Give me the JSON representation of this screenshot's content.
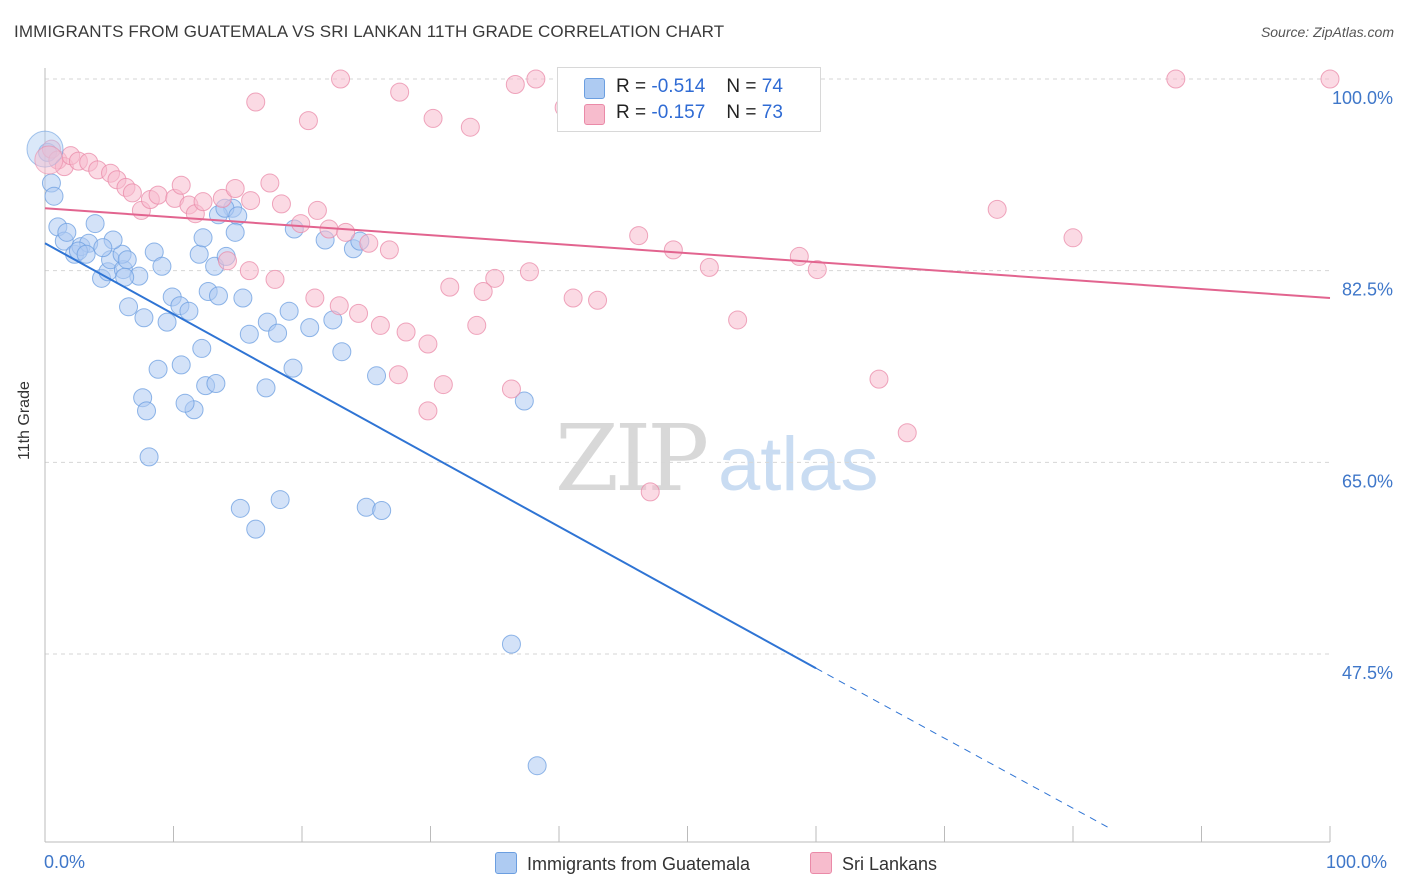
{
  "header": {
    "title": "IMMIGRANTS FROM GUATEMALA VS SRI LANKAN 11TH GRADE CORRELATION CHART",
    "source": "Source: ZipAtlas.com"
  },
  "legend": {
    "rows": [
      {
        "r_label": "R =",
        "r_value": "-0.514",
        "n_label": "N =",
        "n_value": "74",
        "color": "#aecbf2"
      },
      {
        "r_label": "R =",
        "r_value": "-0.157",
        "n_label": "N =",
        "n_value": "73",
        "color": "#f7bccd"
      }
    ],
    "bottom": [
      {
        "label": "Immigrants from Guatemala",
        "color": "#aecbf2"
      },
      {
        "label": "Sri Lankans",
        "color": "#f7bccd"
      }
    ]
  },
  "colors": {
    "blue_point": "#aecbf2",
    "blue_stroke": "#6b9ee0",
    "blue_line": "#2f74d4",
    "pink_point": "#f7bccd",
    "pink_stroke": "#ea8aa8",
    "pink_line": "#e2648f",
    "axis_label": "#3f77c9"
  },
  "chart_data": {
    "type": "scatter",
    "title": "IMMIGRANTS FROM GUATEMALA VS SRI LANKAN 11TH GRADE CORRELATION CHART",
    "xlabel": "",
    "ylabel": "11th Grade",
    "xlim": [
      0,
      100
    ],
    "ylim": [
      31.5,
      102
    ],
    "x_tick_labels": [
      "0.0%",
      "100.0%"
    ],
    "y_ticks": [
      47.5,
      65.0,
      82.5,
      100.0
    ],
    "y_tick_labels": [
      "47.5%",
      "65.0%",
      "82.5%",
      "100.0%"
    ],
    "grid": "horizontal dashed",
    "watermark": "ZIPatlas",
    "series": [
      {
        "name": "Immigrants from Guatemala",
        "r": -0.514,
        "n": 74,
        "trend": {
          "x0": 0,
          "y0": 85.0,
          "x1": 60,
          "y1": 46.2,
          "dashed_to_x": 83,
          "dashed_to_y": 31.5
        },
        "points": [
          [
            0.2,
            93.3
          ],
          [
            0.5,
            90.5
          ],
          [
            0.7,
            89.3
          ],
          [
            1.0,
            86.5
          ],
          [
            1.5,
            85.2
          ],
          [
            1.7,
            86.0
          ],
          [
            2.3,
            84.0
          ],
          [
            2.8,
            84.7
          ],
          [
            3.4,
            85.0
          ],
          [
            3.9,
            86.8
          ],
          [
            2.6,
            84.3
          ],
          [
            3.2,
            84.0
          ],
          [
            4.4,
            81.8
          ],
          [
            4.9,
            82.4
          ],
          [
            5.1,
            83.5
          ],
          [
            6.1,
            82.6
          ],
          [
            6.0,
            84.0
          ],
          [
            6.4,
            83.5
          ],
          [
            7.3,
            82.0
          ],
          [
            7.7,
            78.2
          ],
          [
            6.5,
            79.2
          ],
          [
            8.5,
            84.2
          ],
          [
            9.1,
            82.9
          ],
          [
            9.9,
            80.1
          ],
          [
            9.5,
            77.8
          ],
          [
            10.5,
            79.3
          ],
          [
            11.2,
            78.8
          ],
          [
            12.0,
            84.0
          ],
          [
            12.3,
            85.5
          ],
          [
            13.2,
            82.9
          ],
          [
            12.7,
            80.6
          ],
          [
            14.1,
            83.8
          ],
          [
            14.6,
            88.2
          ],
          [
            13.5,
            87.6
          ],
          [
            14.0,
            88.2
          ],
          [
            15.0,
            87.5
          ],
          [
            14.8,
            86.0
          ],
          [
            5.3,
            85.3
          ],
          [
            4.5,
            84.6
          ],
          [
            6.2,
            81.9
          ],
          [
            19.4,
            86.3
          ],
          [
            21.8,
            85.3
          ],
          [
            24.0,
            84.5
          ],
          [
            24.5,
            85.2
          ],
          [
            19.0,
            78.8
          ],
          [
            17.3,
            77.8
          ],
          [
            15.4,
            80.0
          ],
          [
            13.5,
            80.2
          ],
          [
            12.2,
            75.4
          ],
          [
            10.6,
            73.9
          ],
          [
            8.8,
            73.5
          ],
          [
            12.5,
            72.0
          ],
          [
            11.6,
            69.8
          ],
          [
            7.6,
            70.9
          ],
          [
            8.1,
            65.5
          ],
          [
            18.1,
            76.8
          ],
          [
            19.3,
            73.6
          ],
          [
            20.6,
            77.3
          ],
          [
            22.4,
            78.0
          ],
          [
            23.1,
            75.1
          ],
          [
            13.3,
            72.2
          ],
          [
            10.9,
            70.4
          ],
          [
            15.9,
            76.7
          ],
          [
            25.8,
            72.9
          ],
          [
            7.9,
            69.7
          ],
          [
            17.2,
            71.8
          ],
          [
            15.2,
            60.8
          ],
          [
            18.3,
            61.6
          ],
          [
            25.0,
            60.9
          ],
          [
            16.4,
            58.9
          ],
          [
            26.2,
            60.6
          ],
          [
            37.3,
            70.6
          ],
          [
            36.3,
            48.4
          ],
          [
            38.3,
            37.3
          ]
        ]
      },
      {
        "name": "Sri Lankans",
        "r": -0.157,
        "n": 73,
        "trend": {
          "x0": 0,
          "y0": 88.2,
          "x1": 100,
          "y1": 80.0
        },
        "points": [
          [
            0.5,
            93.6
          ],
          [
            1.0,
            92.6
          ],
          [
            1.5,
            92.0
          ],
          [
            2.0,
            93.0
          ],
          [
            2.6,
            92.5
          ],
          [
            3.4,
            92.4
          ],
          [
            4.1,
            91.7
          ],
          [
            5.1,
            91.4
          ],
          [
            5.6,
            90.8
          ],
          [
            6.3,
            90.1
          ],
          [
            6.8,
            89.6
          ],
          [
            7.5,
            88.0
          ],
          [
            8.2,
            89.0
          ],
          [
            8.8,
            89.4
          ],
          [
            10.1,
            89.1
          ],
          [
            10.6,
            90.3
          ],
          [
            11.2,
            88.5
          ],
          [
            11.7,
            87.7
          ],
          [
            12.3,
            88.8
          ],
          [
            13.8,
            89.1
          ],
          [
            14.8,
            90.0
          ],
          [
            16.0,
            88.9
          ],
          [
            17.5,
            90.5
          ],
          [
            18.4,
            88.6
          ],
          [
            19.9,
            86.8
          ],
          [
            21.2,
            88.0
          ],
          [
            22.1,
            86.3
          ],
          [
            23.4,
            86.0
          ],
          [
            25.2,
            85.0
          ],
          [
            26.8,
            84.4
          ],
          [
            14.2,
            83.4
          ],
          [
            15.9,
            82.5
          ],
          [
            17.9,
            81.7
          ],
          [
            21.0,
            80.0
          ],
          [
            22.9,
            79.3
          ],
          [
            24.4,
            78.6
          ],
          [
            26.1,
            77.5
          ],
          [
            28.1,
            76.9
          ],
          [
            29.8,
            75.8
          ],
          [
            31.0,
            72.1
          ],
          [
            16.4,
            97.9
          ],
          [
            20.5,
            96.2
          ],
          [
            23.0,
            100.0
          ],
          [
            27.6,
            98.8
          ],
          [
            30.2,
            96.4
          ],
          [
            33.1,
            95.6
          ],
          [
            36.6,
            99.5
          ],
          [
            38.2,
            100.0
          ],
          [
            40.4,
            97.4
          ],
          [
            42.3,
            96.5
          ],
          [
            46.2,
            85.7
          ],
          [
            48.9,
            84.4
          ],
          [
            51.7,
            82.8
          ],
          [
            53.9,
            78.0
          ],
          [
            58.7,
            83.8
          ],
          [
            60.1,
            82.6
          ],
          [
            64.9,
            72.6
          ],
          [
            67.1,
            67.7
          ],
          [
            74.1,
            88.1
          ],
          [
            80.0,
            85.5
          ],
          [
            88.0,
            100.0
          ],
          [
            100.0,
            100.0
          ],
          [
            43.0,
            79.8
          ],
          [
            35.0,
            81.8
          ],
          [
            31.5,
            81.0
          ],
          [
            37.7,
            82.4
          ],
          [
            41.1,
            80.0
          ],
          [
            34.1,
            80.6
          ],
          [
            33.6,
            77.5
          ],
          [
            27.5,
            73.0
          ],
          [
            29.8,
            69.7
          ],
          [
            36.3,
            71.7
          ],
          [
            47.1,
            62.3
          ]
        ]
      }
    ]
  }
}
